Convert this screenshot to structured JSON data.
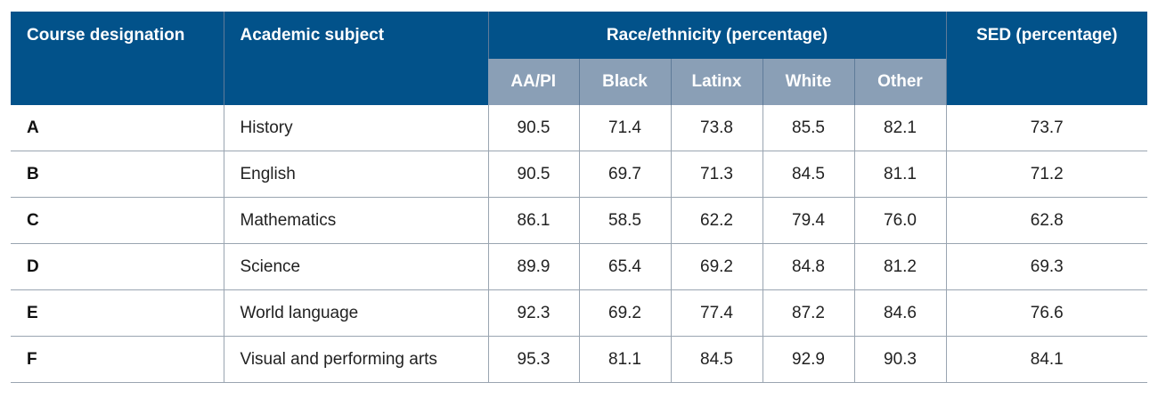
{
  "header": {
    "course_designation": "Course designation",
    "academic_subject": "Academic subject",
    "race_group": "Race/ethnicity (percentage)",
    "sed": "SED (percentage)",
    "race_columns": [
      "AA/PI",
      "Black",
      "Latinx",
      "White",
      "Other"
    ]
  },
  "colors": {
    "header_primary": "#02528a",
    "header_secondary": "#8a9fb6",
    "grid_line": "#9aa5b1"
  },
  "rows": [
    {
      "course": "A",
      "subject": "History",
      "values": [
        "90.5",
        "71.4",
        "73.8",
        "85.5",
        "82.1"
      ],
      "sed": "73.7"
    },
    {
      "course": "B",
      "subject": "English",
      "values": [
        "90.5",
        "69.7",
        "71.3",
        "84.5",
        "81.1"
      ],
      "sed": "71.2"
    },
    {
      "course": "C",
      "subject": "Mathematics",
      "values": [
        "86.1",
        "58.5",
        "62.2",
        "79.4",
        "76.0"
      ],
      "sed": "62.8"
    },
    {
      "course": "D",
      "subject": "Science",
      "values": [
        "89.9",
        "65.4",
        "69.2",
        "84.8",
        "81.2"
      ],
      "sed": "69.3"
    },
    {
      "course": "E",
      "subject": "World language",
      "values": [
        "92.3",
        "69.2",
        "77.4",
        "87.2",
        "84.6"
      ],
      "sed": "76.6"
    },
    {
      "course": "F",
      "subject": "Visual and performing arts",
      "values": [
        "95.3",
        "81.1",
        "84.5",
        "92.9",
        "90.3"
      ],
      "sed": "84.1"
    }
  ]
}
